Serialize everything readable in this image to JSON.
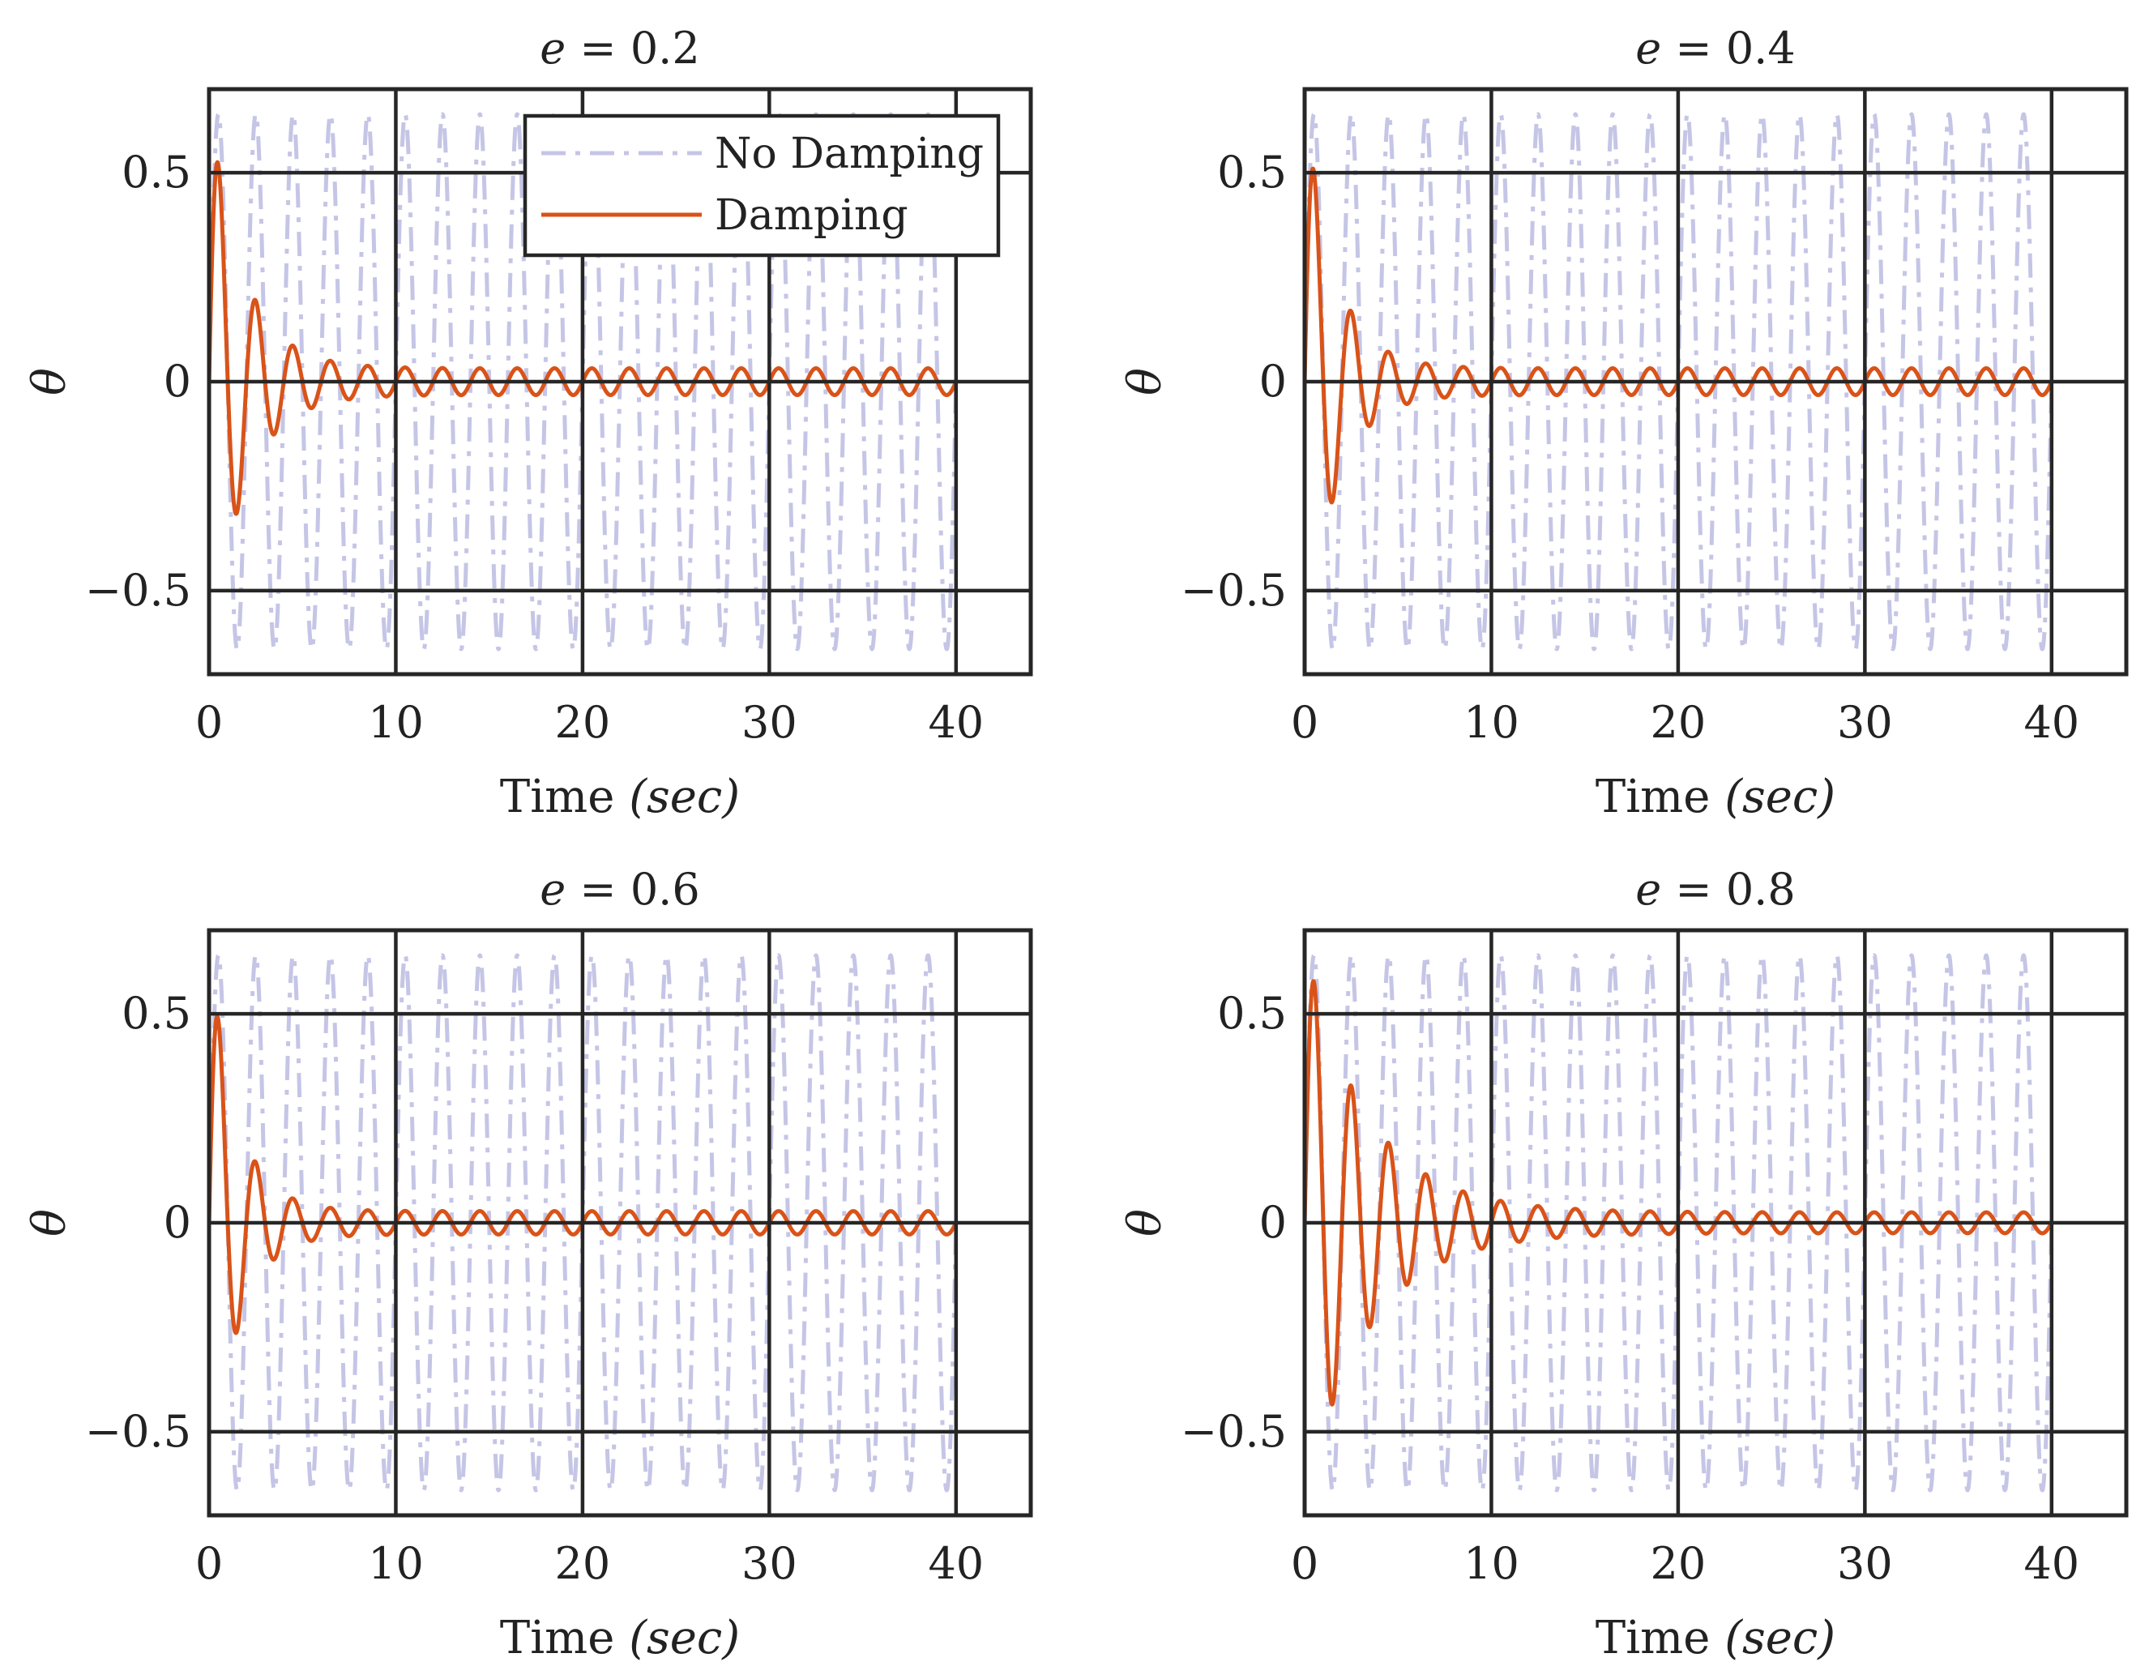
{
  "chart_data": [
    {
      "type": "line",
      "title": "e = 0.2",
      "title_var": "e",
      "title_op": " = ",
      "title_val": "0.2",
      "xlabel_text": "Time ",
      "xlabel_unit": "(sec)",
      "ylabel": "θ",
      "xlim": [
        0,
        44
      ],
      "ylim": [
        -0.7,
        0.7
      ],
      "xticks": [
        0,
        10,
        20,
        30,
        40
      ],
      "xtick_labels": [
        "0",
        "10",
        "20",
        "30",
        "40"
      ],
      "yticks": [
        0.5,
        0,
        -0.5
      ],
      "ytick_labels": [
        "0.5",
        "0",
        "−0.5"
      ],
      "grid": true,
      "legend": {
        "position": "top-center",
        "entries": [
          "No Damping",
          "Damping"
        ]
      },
      "series": [
        {
          "name": "No Damping",
          "style": "dash-dot",
          "color": "#c5c5e6",
          "t_end": 40,
          "amplitude": 0.64,
          "period": 2.0
        },
        {
          "name": "Damping",
          "style": "solid",
          "color": "#d95319",
          "t_end": 40,
          "amplitude": 0.64,
          "period": 2.0,
          "decay": 0.55,
          "steady": 0.032
        }
      ]
    },
    {
      "type": "line",
      "title": "e = 0.4",
      "title_var": "e",
      "title_op": " = ",
      "title_val": "0.4",
      "xlabel_text": "Time ",
      "xlabel_unit": "(sec)",
      "ylabel": "θ",
      "xlim": [
        0,
        44
      ],
      "ylim": [
        -0.7,
        0.7
      ],
      "xticks": [
        0,
        10,
        20,
        30,
        40
      ],
      "xtick_labels": [
        "0",
        "10",
        "20",
        "30",
        "40"
      ],
      "yticks": [
        0.5,
        0,
        -0.5
      ],
      "ytick_labels": [
        "0.5",
        "0",
        "−0.5"
      ],
      "grid": true,
      "series": [
        {
          "name": "No Damping",
          "style": "dash-dot",
          "color": "#c5c5e6",
          "t_end": 40,
          "amplitude": 0.64,
          "period": 2.0
        },
        {
          "name": "Damping",
          "style": "solid",
          "color": "#d95319",
          "t_end": 40,
          "amplitude": 0.64,
          "period": 2.0,
          "decay": 0.62,
          "steady": 0.032
        }
      ]
    },
    {
      "type": "line",
      "title": "e = 0.6",
      "title_var": "e",
      "title_op": " = ",
      "title_val": "0.6",
      "xlabel_text": "Time ",
      "xlabel_unit": "(sec)",
      "ylabel": "θ",
      "xlim": [
        0,
        44
      ],
      "ylim": [
        -0.7,
        0.7
      ],
      "xticks": [
        0,
        10,
        20,
        30,
        40
      ],
      "xtick_labels": [
        "0",
        "10",
        "20",
        "30",
        "40"
      ],
      "yticks": [
        0.5,
        0,
        -0.5
      ],
      "ytick_labels": [
        "0.5",
        "0",
        "−0.5"
      ],
      "grid": true,
      "series": [
        {
          "name": "No Damping",
          "style": "dash-dot",
          "color": "#c5c5e6",
          "t_end": 40,
          "amplitude": 0.64,
          "period": 2.0
        },
        {
          "name": "Damping",
          "style": "solid",
          "color": "#d95319",
          "t_end": 40,
          "amplitude": 0.64,
          "period": 2.0,
          "decay": 0.68,
          "steady": 0.028
        }
      ]
    },
    {
      "type": "line",
      "title": "e = 0.8",
      "title_var": "e",
      "title_op": " = ",
      "title_val": "0.8",
      "xlabel_text": "Time ",
      "xlabel_unit": "(sec)",
      "ylabel": "θ",
      "xlim": [
        0,
        44
      ],
      "ylim": [
        -0.7,
        0.7
      ],
      "xticks": [
        0,
        10,
        20,
        30,
        40
      ],
      "xtick_labels": [
        "0",
        "10",
        "20",
        "30",
        "40"
      ],
      "yticks": [
        0.5,
        0,
        -0.5
      ],
      "ytick_labels": [
        "0.5",
        "0",
        "−0.5"
      ],
      "grid": true,
      "series": [
        {
          "name": "No Damping",
          "style": "dash-dot",
          "color": "#c5c5e6",
          "t_end": 40,
          "amplitude": 0.64,
          "period": 2.0
        },
        {
          "name": "Damping",
          "style": "solid",
          "color": "#d95319",
          "t_end": 40,
          "amplitude": 0.64,
          "period": 2.0,
          "decay": 0.3,
          "steady": 0.025
        }
      ]
    }
  ]
}
